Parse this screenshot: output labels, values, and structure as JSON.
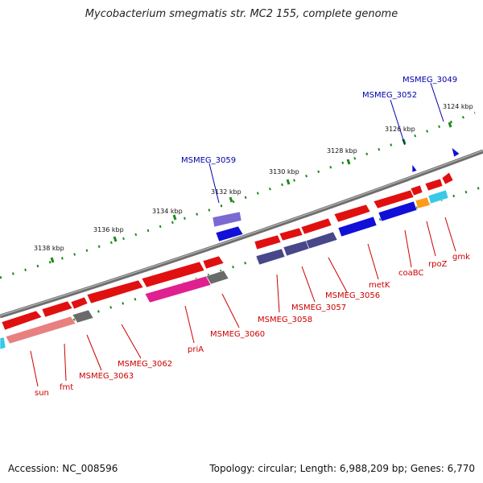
{
  "title": "Mycobacterium smegmatis str. MC2 155, complete genome",
  "footer": {
    "accession": "Accession: NC_008596",
    "stats": "Topology: circular; Length: 6,988,209 bp; Genes: 6,770"
  },
  "colors": {
    "backbone": "#7a7a7a",
    "tick": "#1a8a1a",
    "label_red": "#cc0000",
    "label_blue": "#0000aa",
    "red": "#e01010",
    "blue": "#1010d8",
    "slate": "#47478a",
    "purple": "#7b6bd0",
    "gray": "#6a6a6a",
    "pink": "#e0208f",
    "salmon": "#e88080",
    "orange": "#ff9a1a",
    "cyan": "#38c8e8"
  },
  "scale_labels": [
    "3124 kbp",
    "3126 kbp",
    "3128 kbp",
    "3130 kbp",
    "3132 kbp",
    "3134 kbp",
    "3136 kbp",
    "3138 kbp"
  ],
  "genes": [
    {
      "label": "MSMEG_3049"
    },
    {
      "label": "MSMEG_3052"
    },
    {
      "label": "MSMEG_3059"
    },
    {
      "label": "gmk"
    },
    {
      "label": "rpoZ"
    },
    {
      "label": "coaBC"
    },
    {
      "label": "metK"
    },
    {
      "label": "MSMEG_3056"
    },
    {
      "label": "MSMEG_3057"
    },
    {
      "label": "MSMEG_3058"
    },
    {
      "label": "MSMEG_3060"
    },
    {
      "label": "priA"
    },
    {
      "label": "MSMEG_3062"
    },
    {
      "label": "MSMEG_3063"
    },
    {
      "label": "fmt"
    },
    {
      "label": "sun"
    }
  ]
}
